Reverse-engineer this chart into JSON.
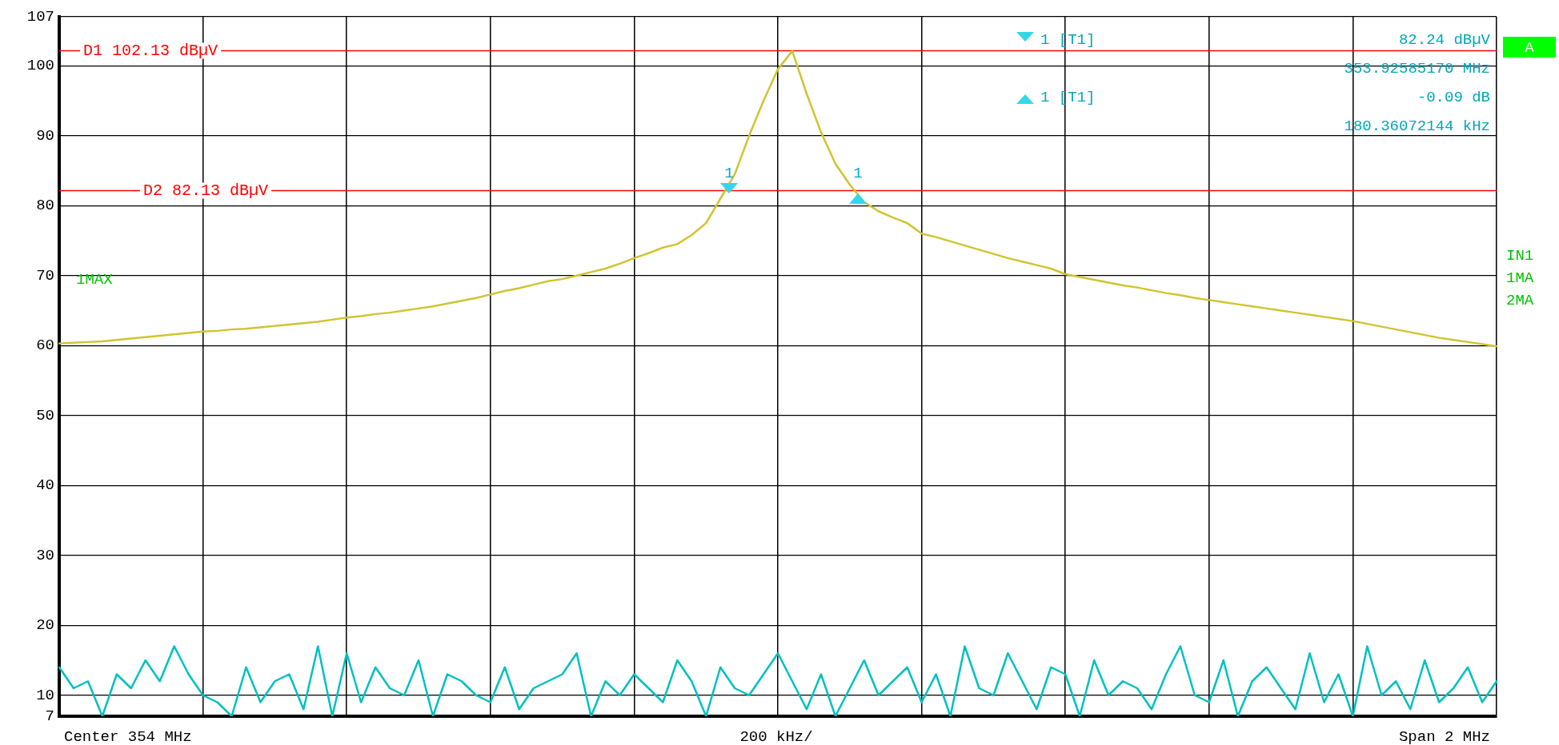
{
  "chart_data": {
    "type": "line",
    "categories": [
      null,
      null,
      null,
      null,
      null,
      null,
      null,
      null,
      null,
      null,
      null,
      null,
      null,
      null,
      null,
      null,
      null,
      null,
      null,
      null,
      null,
      null,
      null,
      null,
      null,
      null,
      null,
      null,
      null,
      null,
      null,
      null,
      null,
      null,
      null,
      null,
      null,
      null,
      null,
      null,
      null,
      null,
      null,
      null,
      null,
      null,
      null,
      null,
      null,
      null,
      null,
      null,
      null,
      null,
      null,
      null,
      null,
      null,
      null,
      null,
      null,
      null,
      null,
      null,
      null,
      null,
      null,
      null,
      null,
      null,
      null,
      null,
      null,
      null,
      null,
      null,
      null,
      null,
      null,
      null,
      null,
      null,
      null,
      null,
      null,
      null,
      null,
      null,
      null,
      null,
      null,
      null,
      null,
      null,
      null,
      null,
      null,
      null,
      null,
      null,
      null
    ],
    "ylim": [
      7,
      107
    ],
    "yticks": [
      7,
      10,
      20,
      30,
      40,
      50,
      60,
      70,
      80,
      90,
      100,
      107
    ],
    "grid": true,
    "tick_labels": "y",
    "series": [
      {
        "color": "#d0c430",
        "values": [
          60.3,
          60.4,
          60.5,
          60.6,
          60.8,
          61.0,
          61.2,
          61.4,
          61.6,
          61.8,
          62.0,
          62.1,
          62.3,
          62.4,
          62.6,
          62.8,
          63.0,
          63.2,
          63.4,
          63.7,
          64.0,
          64.2,
          64.5,
          64.7,
          65.0,
          65.3,
          65.6,
          66.0,
          66.4,
          66.8,
          67.3,
          67.8,
          68.2,
          68.7,
          69.2,
          69.5,
          70.0,
          70.5,
          71.0,
          71.7,
          72.5,
          73.2,
          74.0,
          74.5,
          75.8,
          77.5,
          81,
          84.5,
          90,
          95,
          99.5,
          102.1,
          96,
          90.5,
          86,
          83,
          80.5,
          79.2,
          78.3,
          77.5,
          76,
          75.5,
          74.9,
          74.3,
          73.7,
          73.1,
          72.5,
          72,
          71.5,
          71,
          70.2,
          69.8,
          69.4,
          69,
          68.6,
          68.3,
          67.9,
          67.5,
          67.2,
          66.8,
          66.5,
          66.2,
          65.9,
          65.6,
          65.3,
          65,
          64.7,
          64.4,
          64.1,
          63.8,
          63.5,
          63.1,
          62.7,
          62.3,
          61.9,
          61.5,
          61.1,
          60.8,
          60.5,
          60.2,
          59.9
        ]
      },
      {
        "color": "#00c0c0",
        "values": [
          14,
          11,
          12,
          7,
          13,
          11,
          15,
          12,
          17,
          13,
          10,
          9,
          7,
          14,
          9,
          12,
          13,
          8,
          17,
          7,
          16,
          9,
          14,
          11,
          10,
          15,
          7,
          13,
          12,
          10,
          9,
          14,
          8,
          11,
          12,
          13,
          16,
          7,
          12,
          10,
          13,
          11,
          9,
          15,
          12,
          7,
          14,
          11,
          10,
          13,
          16,
          12,
          8,
          13,
          7,
          11,
          15,
          10,
          12,
          14,
          9,
          13,
          7,
          17,
          11,
          10,
          16,
          12,
          8,
          14,
          13,
          7,
          15,
          10,
          12,
          11,
          8,
          13,
          17,
          10,
          9,
          15,
          7,
          12,
          14,
          11,
          8,
          16,
          9,
          13,
          7,
          17,
          10,
          12,
          8,
          15,
          9,
          11,
          14,
          9,
          12
        ]
      }
    ],
    "ref_lines": [
      {
        "axis": "y",
        "value": 102.13,
        "label": "D1 102.13 dBµV",
        "color": "#ff0000"
      },
      {
        "axis": "y",
        "value": 82.13,
        "label": "D2 82.13 dBµV",
        "color": "#ff0000"
      }
    ],
    "annotations": [
      "1 [T1]",
      "82.24 dBµV",
      "353.92585170 MHz",
      "1 [T1]",
      "-0.09 dB",
      "180.36072144 kHz",
      "1MAX",
      "IN1",
      "1MA",
      "2MA",
      "A",
      "Center 354 MHz",
      "200 kHz/",
      "Span 2 MHz",
      "1",
      "1"
    ]
  }
}
